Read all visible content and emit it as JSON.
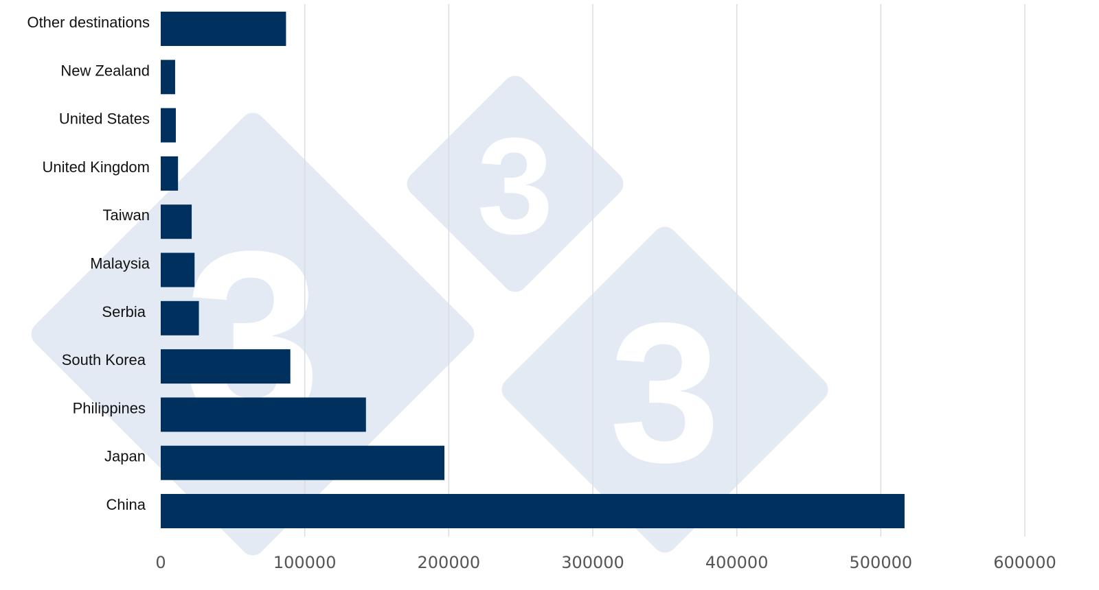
{
  "chart_data": {
    "type": "bar",
    "orientation": "horizontal",
    "title": "",
    "xlabel": "",
    "ylabel": "",
    "categories": [
      "Other destinations",
      "New Zealand",
      "United States",
      "United Kingdom",
      "Taiwan",
      "Malaysia",
      "Serbia",
      "South Korea",
      "Philippines",
      "Japan",
      "China"
    ],
    "series": [
      {
        "values": [
          87000,
          10000,
          10500,
          12000,
          21500,
          23500,
          26500,
          90000,
          142500,
          197000,
          516500
        ]
      }
    ],
    "xlim": [
      0,
      600000
    ],
    "xticks": [
      0,
      100000,
      200000,
      300000,
      400000,
      500000,
      600000
    ],
    "xtick_labels": [
      "0",
      "100000",
      "200000",
      "300000",
      "400000",
      "500000",
      "600000"
    ],
    "grid": "vertical",
    "legend": "none",
    "colors": {
      "bar": "#00305e",
      "grid": "#d9dde3",
      "watermark": "#e3eaf4"
    },
    "watermark": {
      "glyph": "3",
      "count": 3
    }
  }
}
